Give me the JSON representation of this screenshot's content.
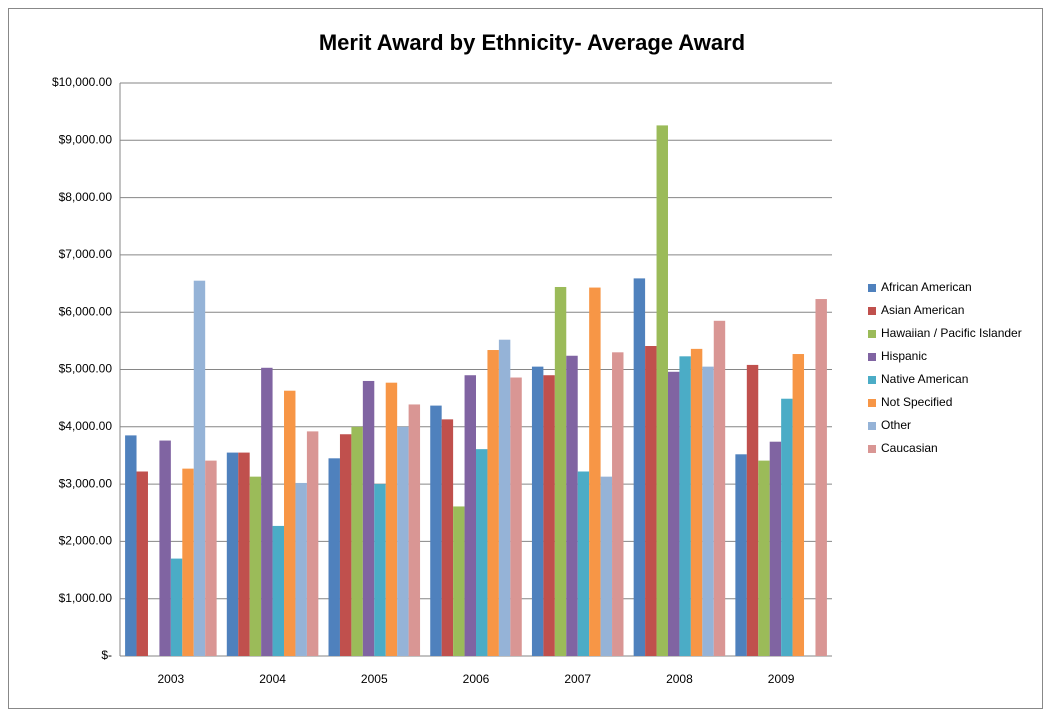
{
  "chart_data": {
    "type": "bar",
    "title": "Merit Award by Ethnicity- Average Award",
    "categories": [
      "2003",
      "2004",
      "2005",
      "2006",
      "2007",
      "2008",
      "2009"
    ],
    "series": [
      {
        "name": "African American",
        "color": "#4f81bd",
        "values": [
          3850,
          3550,
          3450,
          4370,
          5050,
          6590,
          3520
        ]
      },
      {
        "name": "Asian American",
        "color": "#c0504d",
        "values": [
          3220,
          3550,
          3870,
          4130,
          4900,
          5410,
          5080
        ]
      },
      {
        "name": "Hawaiian / Pacific Islander",
        "color": "#9bbb59",
        "values": [
          null,
          3130,
          4000,
          2610,
          6440,
          9260,
          3410
        ]
      },
      {
        "name": "Hispanic",
        "color": "#8064a2",
        "values": [
          3760,
          5030,
          4800,
          4900,
          5240,
          4960,
          3740
        ]
      },
      {
        "name": "Native American",
        "color": "#4bacc6",
        "values": [
          1700,
          2270,
          3000,
          3610,
          3220,
          5230,
          4490
        ]
      },
      {
        "name": "Not Specified",
        "color": "#f79646",
        "values": [
          3270,
          4630,
          4770,
          5340,
          6430,
          5360,
          5270
        ]
      },
      {
        "name": "Other",
        "color": "#95b3d7",
        "values": [
          6550,
          3020,
          4000,
          5520,
          3130,
          5050,
          null
        ]
      },
      {
        "name": "Caucasian",
        "color": "#d99694",
        "values": [
          3410,
          3920,
          4390,
          4860,
          5300,
          5850,
          6230
        ]
      }
    ],
    "ylim": [
      0,
      10000
    ],
    "yticks": [
      {
        "value": 0,
        "label": "$-"
      },
      {
        "value": 1000,
        "label": "$1,000.00"
      },
      {
        "value": 2000,
        "label": "$2,000.00"
      },
      {
        "value": 3000,
        "label": "$3,000.00"
      },
      {
        "value": 4000,
        "label": "$4,000.00"
      },
      {
        "value": 5000,
        "label": "$5,000.00"
      },
      {
        "value": 6000,
        "label": "$6,000.00"
      },
      {
        "value": 7000,
        "label": "$7,000.00"
      },
      {
        "value": 8000,
        "label": "$8,000.00"
      },
      {
        "value": 9000,
        "label": "$9,000.00"
      },
      {
        "value": 10000,
        "label": "$10,000.00"
      }
    ],
    "grid": true,
    "legend": "right"
  }
}
